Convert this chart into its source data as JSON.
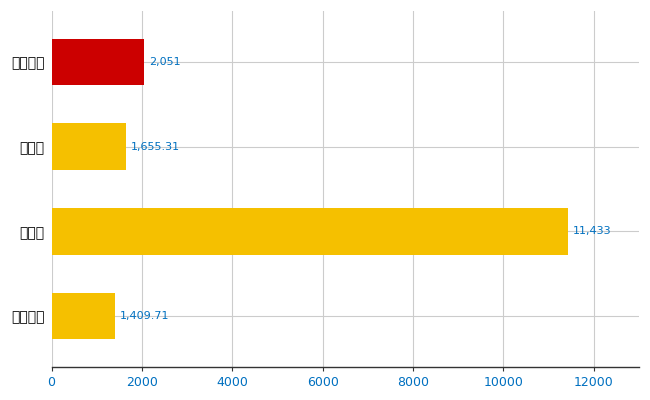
{
  "categories": [
    "御殿場市",
    "県平均",
    "県最大",
    "全国平均"
  ],
  "values": [
    2051,
    1655.31,
    11433,
    1409.71
  ],
  "labels": [
    "2,051",
    "1,655.31",
    "11,433",
    "1,409.71"
  ],
  "bar_colors": [
    "#cc0000",
    "#f5c000",
    "#f5c000",
    "#f5c000"
  ],
  "xlim": [
    0,
    13000
  ],
  "xticks": [
    0,
    2000,
    4000,
    6000,
    8000,
    10000,
    12000
  ],
  "xtick_labels": [
    "0",
    "2000",
    "4000",
    "6000",
    "8000",
    "10000",
    "12000"
  ],
  "background_color": "#ffffff",
  "grid_color": "#cccccc",
  "label_color": "#0070c0",
  "tick_color": "#0070c0",
  "bar_height": 0.55,
  "figsize": [
    6.5,
    4.0
  ],
  "dpi": 100
}
